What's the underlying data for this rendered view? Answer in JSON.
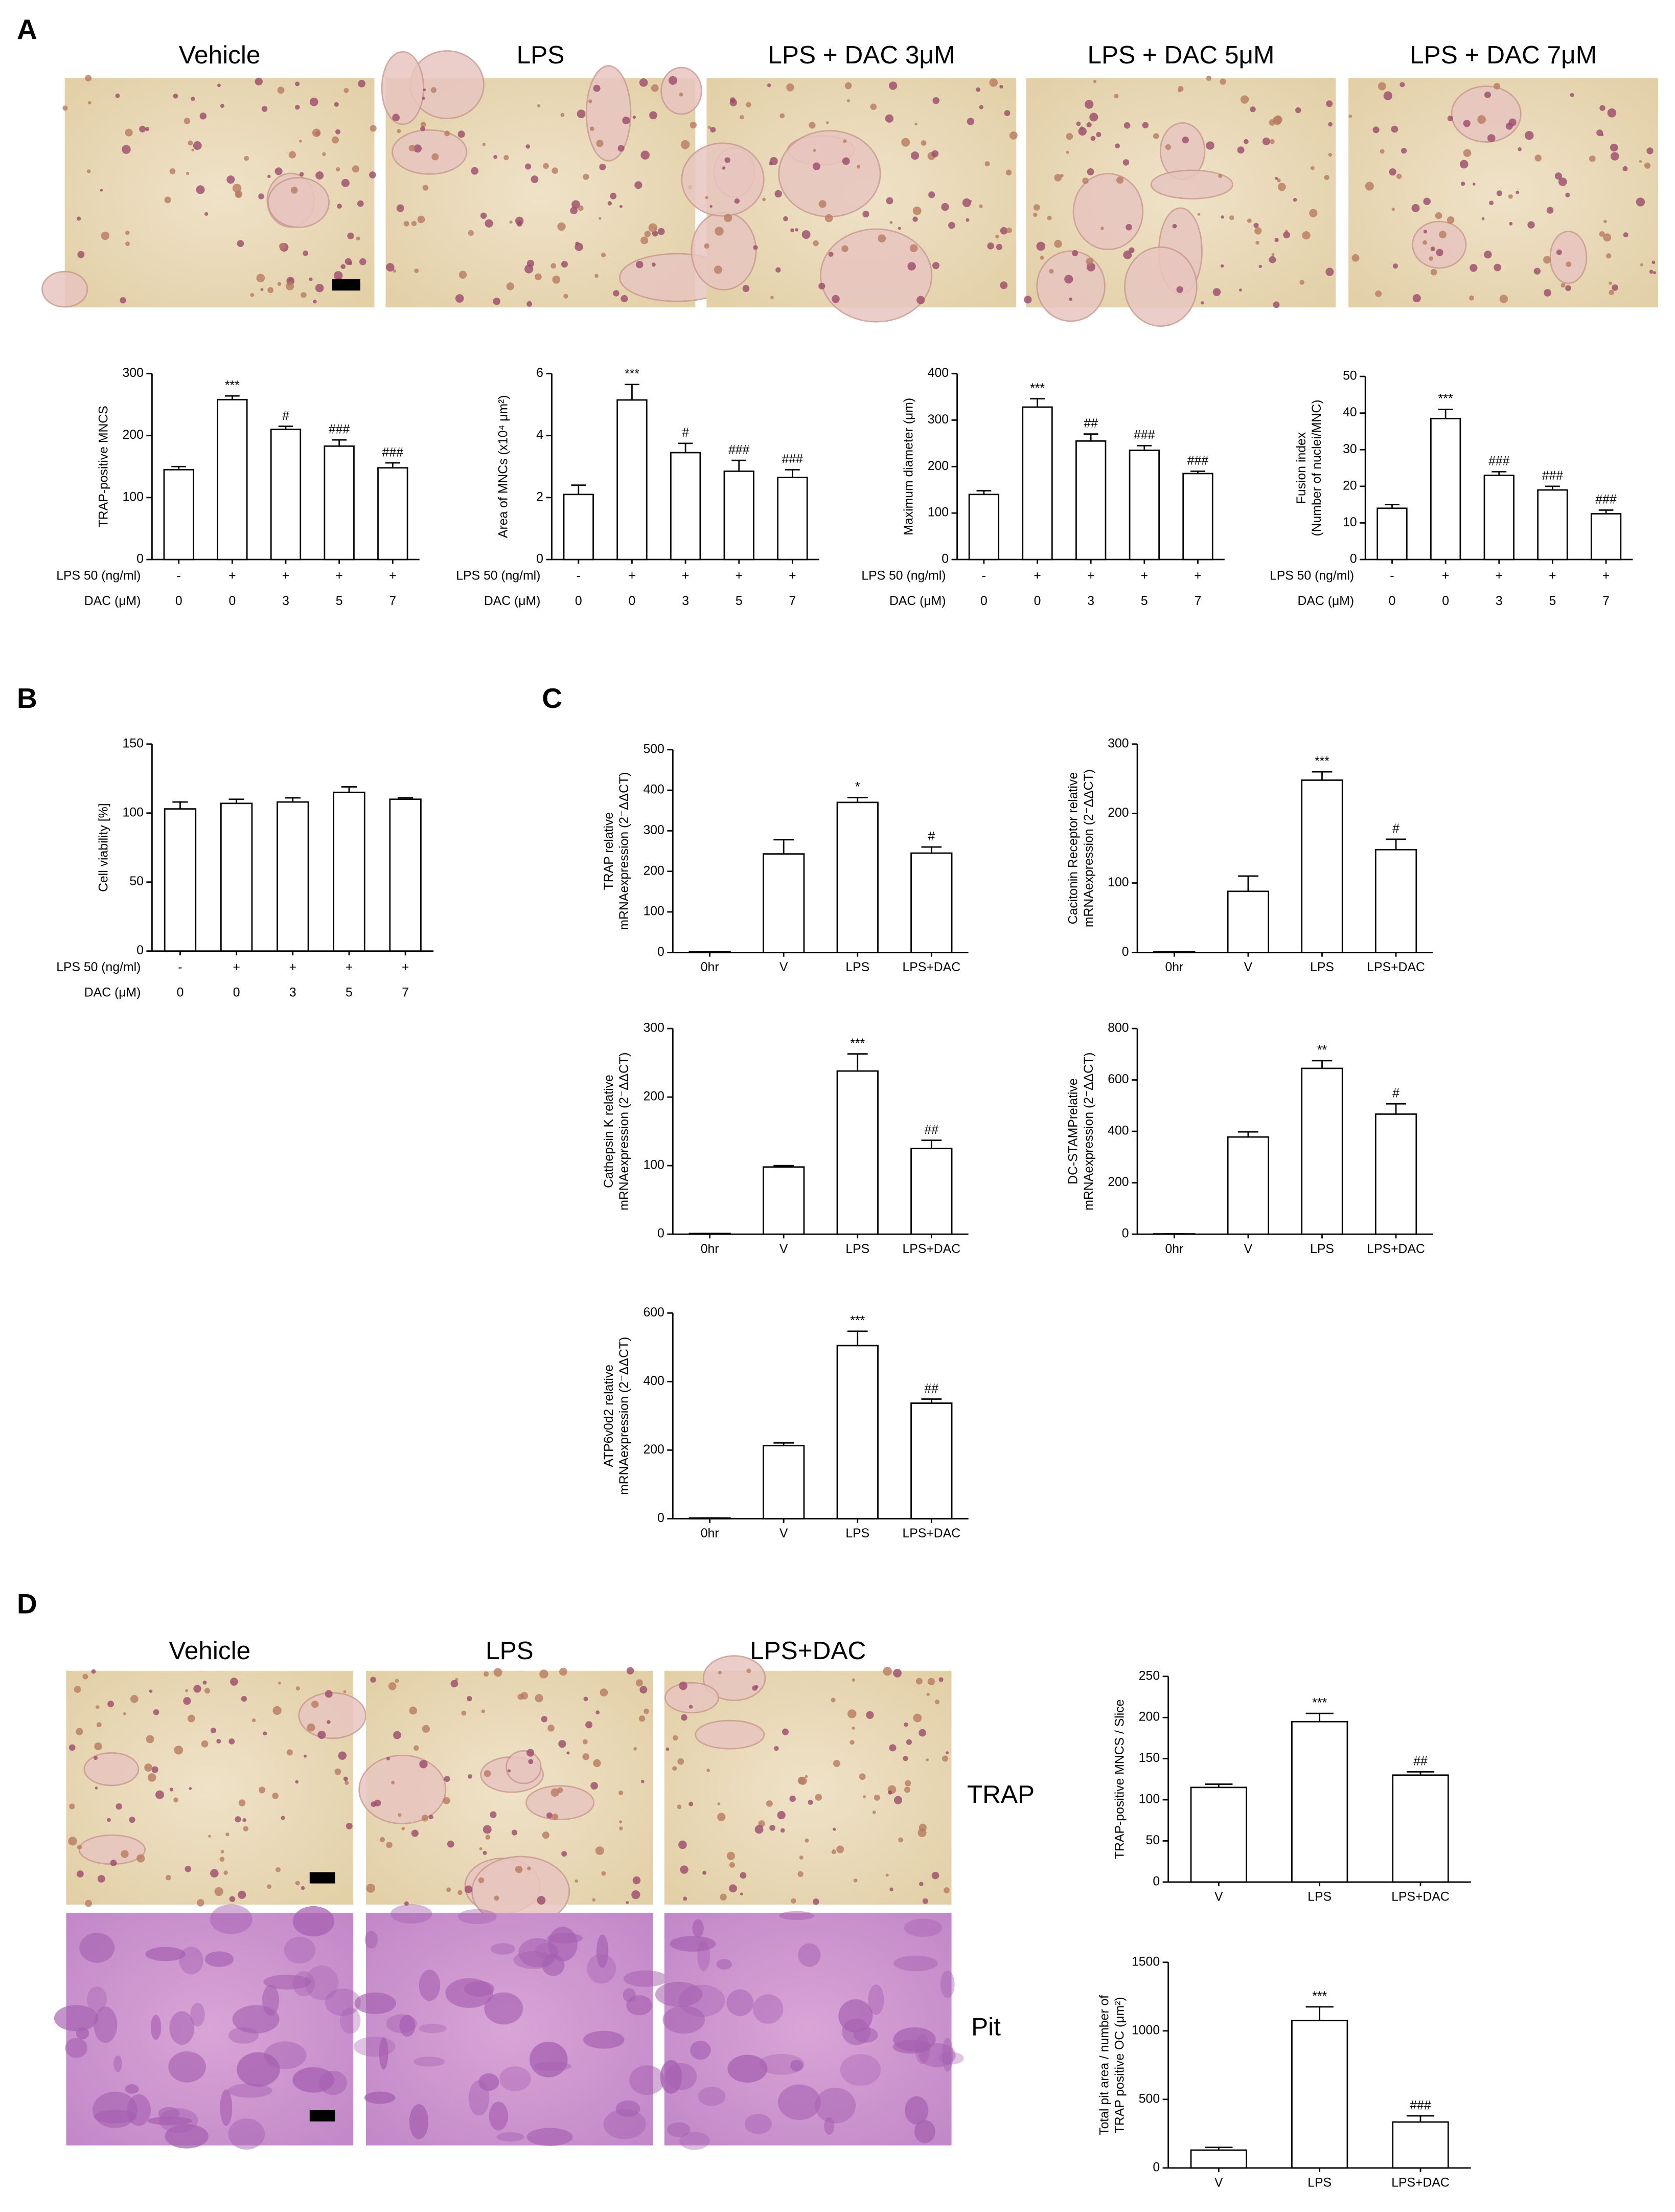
{
  "panels": [
    "A",
    "B",
    "C",
    "D"
  ],
  "images": {
    "a_titles": [
      "Vehicle",
      "LPS",
      "LPS + DAC 3μM",
      "LPS + DAC 5μM",
      "LPS + DAC 7μM"
    ],
    "d_titles": [
      "Vehicle",
      "LPS",
      "LPS+DAC"
    ],
    "d_rows": [
      "TRAP",
      "Pit"
    ]
  },
  "chart_data": [
    {
      "type": "bar",
      "ylabel": [
        "TRAP-positive MNCS"
      ],
      "ylim": [
        0,
        300
      ],
      "yticks": [
        0,
        100,
        200,
        300
      ],
      "color": "#ffffff",
      "category_rows": [
        {
          "label": "LPS 50 (ng/ml)",
          "values": [
            "-",
            "+",
            "+",
            "+",
            "+"
          ]
        },
        {
          "label": "DAC (μM)",
          "values": [
            "0",
            "0",
            "3",
            "5",
            "7"
          ]
        }
      ],
      "values": [
        145,
        258,
        210,
        183,
        148
      ],
      "errors": [
        5,
        6,
        5,
        10,
        8
      ],
      "annotations": [
        null,
        "***",
        "#",
        "###",
        "###"
      ]
    },
    {
      "type": "bar",
      "ylabel": [
        "Area of MNCs (x10⁴ μm²)"
      ],
      "ylim": [
        0,
        6
      ],
      "yticks": [
        0,
        2,
        4,
        6
      ],
      "color": "#ffffff",
      "category_rows": [
        {
          "label": "LPS 50 (ng/ml)",
          "values": [
            "-",
            "+",
            "+",
            "+",
            "+"
          ]
        },
        {
          "label": "DAC (μM)",
          "values": [
            "0",
            "0",
            "3",
            "5",
            "7"
          ]
        }
      ],
      "values": [
        2.1,
        5.15,
        3.45,
        2.85,
        2.65
      ],
      "errors": [
        0.3,
        0.5,
        0.3,
        0.35,
        0.25
      ],
      "annotations": [
        null,
        "***",
        "#",
        "###",
        "###"
      ]
    },
    {
      "type": "bar",
      "ylabel": [
        "Maximum diameter (μm)"
      ],
      "ylim": [
        0,
        400
      ],
      "yticks": [
        0,
        100,
        200,
        300,
        400
      ],
      "color": "#ffffff",
      "category_rows": [
        {
          "label": "LPS 50 (ng/ml)",
          "values": [
            "-",
            "+",
            "+",
            "+",
            "+"
          ]
        },
        {
          "label": "DAC (μM)",
          "values": [
            "0",
            "0",
            "3",
            "5",
            "7"
          ]
        }
      ],
      "values": [
        140,
        328,
        255,
        235,
        185
      ],
      "errors": [
        8,
        18,
        15,
        10,
        5
      ],
      "annotations": [
        null,
        "***",
        "##",
        "###",
        "###"
      ]
    },
    {
      "type": "bar",
      "ylabel": [
        "Fusion index",
        "(Number of nuclei/MNC)"
      ],
      "ylim": [
        0,
        50
      ],
      "yticks": [
        0,
        10,
        20,
        30,
        40,
        50
      ],
      "color": "#ffffff",
      "category_rows": [
        {
          "label": "LPS 50 (ng/ml)",
          "values": [
            "-",
            "+",
            "+",
            "+",
            "+"
          ]
        },
        {
          "label": "DAC (μM)",
          "values": [
            "0",
            "0",
            "3",
            "5",
            "7"
          ]
        }
      ],
      "values": [
        14,
        38.5,
        23,
        19,
        12.5
      ],
      "errors": [
        1,
        2.5,
        1,
        1,
        1
      ],
      "annotations": [
        null,
        "***",
        "###",
        "###",
        "###"
      ]
    },
    {
      "type": "bar",
      "ylabel": [
        "Cell viability [%]"
      ],
      "ylim": [
        0,
        150
      ],
      "yticks": [
        0,
        50,
        100,
        150
      ],
      "color": "#ffffff",
      "category_rows": [
        {
          "label": "LPS 50 (ng/ml)",
          "values": [
            "-",
            "+",
            "+",
            "+",
            "+"
          ]
        },
        {
          "label": "DAC (μM)",
          "values": [
            "0",
            "0",
            "3",
            "5",
            "7"
          ]
        }
      ],
      "values": [
        103,
        107,
        108,
        115,
        110
      ],
      "errors": [
        5,
        3,
        3,
        4,
        1
      ]
    },
    {
      "type": "bar",
      "ylabel": [
        "TRAP relative",
        "mRNAexpression (2⁻ΔΔCT)"
      ],
      "ylim": [
        0,
        500
      ],
      "yticks": [
        0,
        100,
        200,
        300,
        400,
        500
      ],
      "color": "#ffffff",
      "categories": [
        "0hr",
        "V",
        "LPS",
        "LPS+DAC"
      ],
      "values": [
        2,
        243,
        370,
        245
      ],
      "errors": [
        0,
        35,
        12,
        15
      ],
      "annotations": [
        null,
        null,
        "*",
        "#"
      ]
    },
    {
      "type": "bar",
      "ylabel": [
        "Cacitonin Receptor relative",
        "mRNAexpression (2⁻ΔΔCT)"
      ],
      "ylim": [
        0,
        300
      ],
      "yticks": [
        0,
        100,
        200,
        300
      ],
      "color": "#ffffff",
      "categories": [
        "0hr",
        "V",
        "LPS",
        "LPS+DAC"
      ],
      "values": [
        1,
        88,
        248,
        148
      ],
      "errors": [
        0,
        22,
        12,
        15
      ],
      "annotations": [
        null,
        null,
        "***",
        "#"
      ]
    },
    {
      "type": "bar",
      "ylabel": [
        "Cathepsin K relative",
        "mRNAexpression (2⁻ΔΔCT)"
      ],
      "ylim": [
        0,
        300
      ],
      "yticks": [
        0,
        100,
        200,
        300
      ],
      "color": "#ffffff",
      "categories": [
        "0hr",
        "V",
        "LPS",
        "LPS+DAC"
      ],
      "values": [
        1,
        98,
        238,
        125
      ],
      "errors": [
        0,
        2,
        25,
        12
      ],
      "annotations": [
        null,
        null,
        "***",
        "##"
      ]
    },
    {
      "type": "bar",
      "ylabel": [
        "DC-STAMPrelative",
        "mRNAexpression (2⁻ΔΔCT)"
      ],
      "ylim": [
        0,
        800
      ],
      "yticks": [
        0,
        200,
        400,
        600,
        800
      ],
      "color": "#ffffff",
      "categories": [
        "0hr",
        "V",
        "LPS",
        "LPS+DAC"
      ],
      "values": [
        1,
        378,
        645,
        467
      ],
      "errors": [
        0,
        20,
        30,
        40
      ],
      "annotations": [
        null,
        null,
        "**",
        "#"
      ]
    },
    {
      "type": "bar",
      "ylabel": [
        "ATP6v0d2 relative",
        "mRNAexpression (2⁻ΔΔCT)"
      ],
      "ylim": [
        0,
        600
      ],
      "yticks": [
        0,
        200,
        400,
        600
      ],
      "color": "#ffffff",
      "categories": [
        "0hr",
        "V",
        "LPS",
        "LPS+DAC"
      ],
      "values": [
        2,
        213,
        505,
        337
      ],
      "errors": [
        0,
        8,
        42,
        12
      ],
      "annotations": [
        null,
        null,
        "***",
        "##"
      ]
    },
    {
      "type": "bar",
      "ylabel": [
        "TRAP-positive MNCS / Slice"
      ],
      "ylim": [
        0,
        250
      ],
      "yticks": [
        0,
        50,
        100,
        150,
        200,
        250
      ],
      "color": "#ffffff",
      "categories": [
        "V",
        "LPS",
        "LPS+DAC"
      ],
      "values": [
        115,
        195,
        130
      ],
      "errors": [
        4,
        10,
        4
      ],
      "annotations": [
        null,
        "***",
        "##"
      ]
    },
    {
      "type": "bar",
      "ylabel": [
        "Total pit area / number of",
        "TRAP positive OC (μm²)"
      ],
      "ylim": [
        0,
        1500
      ],
      "yticks": [
        0,
        500,
        1000,
        1500
      ],
      "color": "#ffffff",
      "categories": [
        "V",
        "LPS",
        "LPS+DAC"
      ],
      "values": [
        130,
        1075,
        335
      ],
      "errors": [
        20,
        100,
        45
      ],
      "annotations": [
        null,
        "***",
        "###"
      ]
    }
  ]
}
